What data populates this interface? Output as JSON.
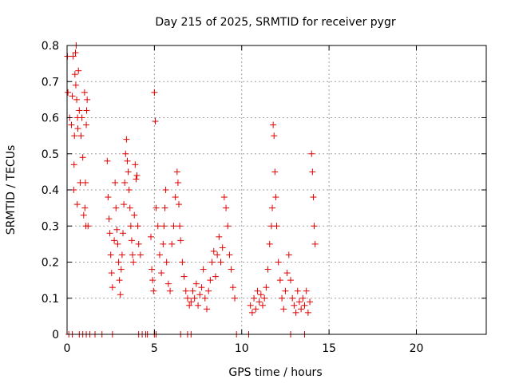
{
  "chart_data": {
    "type": "scatter",
    "title": "Day 215 of 2025, SRMTID for receiver pygr",
    "xlabel": "GPS time / hours",
    "ylabel": "SRMTID / TECUs",
    "xlim": [
      0,
      24
    ],
    "ylim": [
      0,
      0.8
    ],
    "xticks": [
      0,
      5,
      10,
      15,
      20
    ],
    "xtick_labels": [
      "0",
      "5",
      "10",
      "15",
      "20"
    ],
    "yticks": [
      0,
      0.1,
      0.2,
      0.3,
      0.4,
      0.5,
      0.6,
      0.7,
      0.8
    ],
    "ytick_labels": [
      "0",
      "0.1",
      "0.2",
      "0.3",
      "0.4",
      "0.5",
      "0.6",
      "0.7",
      "0.8"
    ],
    "grid": true,
    "marker": "+",
    "colors": {
      "series": "#e00000",
      "grid": "#a0a0a0",
      "axis": "#000000"
    },
    "series": [
      {
        "name": "SRMTID",
        "x": [
          0.02,
          0.05,
          0.15,
          0.25,
          0.3,
          0.35,
          0.38,
          0.4,
          0.42,
          0.45,
          0.48,
          0.5,
          0.52,
          0.55,
          0.58,
          0.6,
          0.62,
          0.65,
          0.7,
          0.75,
          0.8,
          0.85,
          0.9,
          0.95,
          1.0,
          1.02,
          1.05,
          1.08,
          1.1,
          1.12,
          1.15,
          1.2,
          2.3,
          2.35,
          2.4,
          2.45,
          2.5,
          2.55,
          2.6,
          2.7,
          2.75,
          2.8,
          2.85,
          2.9,
          2.95,
          3.0,
          3.05,
          3.1,
          3.15,
          3.2,
          3.25,
          3.3,
          3.35,
          3.4,
          3.45,
          3.5,
          3.55,
          3.6,
          3.65,
          3.7,
          3.75,
          3.8,
          3.85,
          3.9,
          3.95,
          4.0,
          4.05,
          4.1,
          4.2,
          4.8,
          4.85,
          4.9,
          4.95,
          5.0,
          5.05,
          5.1,
          5.2,
          5.3,
          5.4,
          5.5,
          5.55,
          5.6,
          5.65,
          5.7,
          5.8,
          5.9,
          6.0,
          6.1,
          6.2,
          6.3,
          6.35,
          6.4,
          6.45,
          6.5,
          6.6,
          6.7,
          6.8,
          6.9,
          7.0,
          7.1,
          7.2,
          7.3,
          7.4,
          7.5,
          7.6,
          7.7,
          7.8,
          7.9,
          8.0,
          8.1,
          8.2,
          8.3,
          8.4,
          8.5,
          8.6,
          8.7,
          8.8,
          8.9,
          9.0,
          9.1,
          9.2,
          9.3,
          9.4,
          9.5,
          9.6,
          10.5,
          10.6,
          10.7,
          10.8,
          10.9,
          11.0,
          11.1,
          11.2,
          11.3,
          11.4,
          11.5,
          11.6,
          11.7,
          11.75,
          11.8,
          11.85,
          11.9,
          11.95,
          12.0,
          12.1,
          12.2,
          12.3,
          12.4,
          12.5,
          12.6,
          12.7,
          12.8,
          12.9,
          13.0,
          13.1,
          13.2,
          13.3,
          13.4,
          13.5,
          13.6,
          13.7,
          13.8,
          13.9,
          14.0,
          14.05,
          14.1,
          14.15,
          14.2,
          0.1,
          0.3,
          0.7,
          0.9,
          1.1,
          1.3,
          1.6,
          2.0,
          2.6,
          4.1,
          4.3,
          4.5,
          4.6,
          5.0,
          5.1,
          6.5,
          6.9,
          7.1,
          9.7,
          10.4,
          12.8,
          13.6
        ],
        "y": [
          0.77,
          0.67,
          0.6,
          0.58,
          0.66,
          0.77,
          0.4,
          0.47,
          0.55,
          0.72,
          0.78,
          0.69,
          0.8,
          0.65,
          0.36,
          0.6,
          0.57,
          0.73,
          0.62,
          0.42,
          0.55,
          0.6,
          0.49,
          0.33,
          0.67,
          0.35,
          0.42,
          0.3,
          0.58,
          0.62,
          0.65,
          0.3,
          0.48,
          0.38,
          0.32,
          0.28,
          0.22,
          0.17,
          0.13,
          0.26,
          0.42,
          0.35,
          0.29,
          0.25,
          0.2,
          0.15,
          0.11,
          0.18,
          0.22,
          0.28,
          0.36,
          0.42,
          0.5,
          0.54,
          0.48,
          0.45,
          0.4,
          0.35,
          0.3,
          0.26,
          0.22,
          0.2,
          0.33,
          0.47,
          0.43,
          0.44,
          0.3,
          0.25,
          0.22,
          0.27,
          0.18,
          0.15,
          0.12,
          0.67,
          0.59,
          0.35,
          0.3,
          0.22,
          0.17,
          0.25,
          0.3,
          0.35,
          0.4,
          0.2,
          0.14,
          0.12,
          0.25,
          0.3,
          0.38,
          0.45,
          0.42,
          0.36,
          0.3,
          0.26,
          0.2,
          0.16,
          0.12,
          0.1,
          0.08,
          0.09,
          0.12,
          0.1,
          0.14,
          0.08,
          0.11,
          0.13,
          0.18,
          0.1,
          0.07,
          0.12,
          0.15,
          0.2,
          0.23,
          0.16,
          0.22,
          0.27,
          0.2,
          0.24,
          0.38,
          0.35,
          0.3,
          0.22,
          0.18,
          0.13,
          0.1,
          0.08,
          0.06,
          0.1,
          0.07,
          0.12,
          0.09,
          0.11,
          0.08,
          0.1,
          0.13,
          0.18,
          0.25,
          0.3,
          0.35,
          0.58,
          0.55,
          0.45,
          0.38,
          0.3,
          0.2,
          0.15,
          0.1,
          0.07,
          0.12,
          0.17,
          0.22,
          0.15,
          0.1,
          0.08,
          0.06,
          0.12,
          0.09,
          0.07,
          0.1,
          0.08,
          0.12,
          0.06,
          0.09,
          0.5,
          0.45,
          0.38,
          0.3,
          0.25,
          0,
          0,
          0,
          0,
          0,
          0,
          0,
          0,
          0,
          0,
          0,
          0,
          0,
          0,
          0,
          0,
          0,
          0,
          0,
          0,
          0,
          0
        ]
      }
    ]
  }
}
